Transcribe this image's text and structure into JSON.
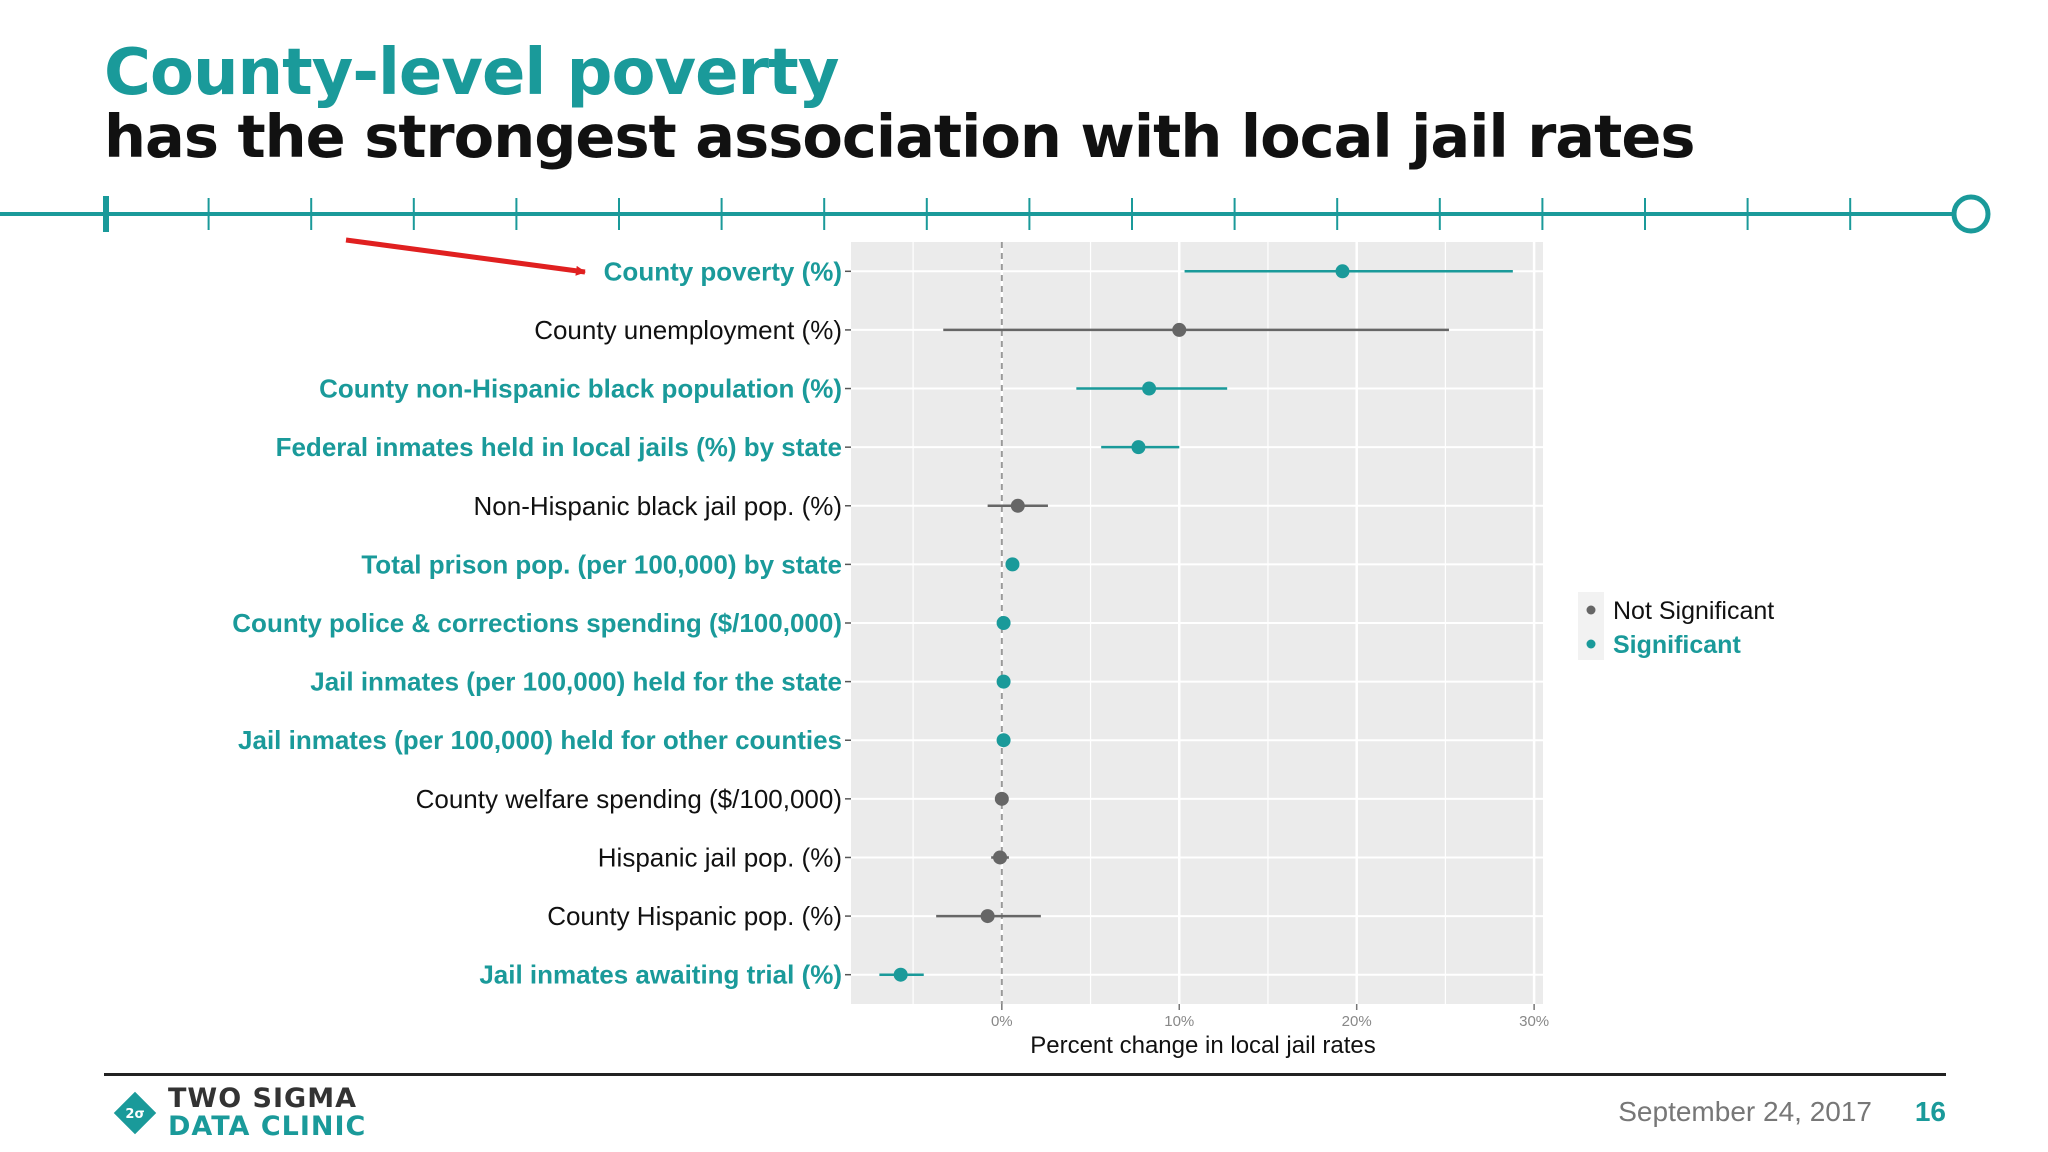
{
  "slide": {
    "title_line1": "County-level poverty",
    "title_line2": "has the strongest association with local jail rates",
    "date": "September 24, 2017",
    "page_number": "16",
    "logo": {
      "line1": "TWO SIGMA",
      "line2": "DATA CLINIC",
      "mark": "2σ"
    }
  },
  "colors": {
    "teal": "#1a9a9a",
    "grey": "#666666",
    "dark": "#111111",
    "panel": "#ebebeb",
    "arrow": "#e02020"
  },
  "chart_data": {
    "type": "scatter",
    "subtype": "coefficient-plot-with-confidence-intervals",
    "xlabel": "Percent change in local jail rates",
    "xlim": [
      -8.5,
      30.5
    ],
    "xticks": [
      0,
      10,
      20,
      30
    ],
    "xtick_labels": [
      "0%",
      "10%",
      "20%",
      "30%"
    ],
    "reference_line_x": 0,
    "grid": true,
    "legend": {
      "placement": "right",
      "entries": [
        {
          "label": "Not Significant",
          "color": "#666666"
        },
        {
          "label": "Significant",
          "color": "#1a9a9a"
        }
      ]
    },
    "annotation": {
      "type": "arrow",
      "points_to": "County poverty (%)"
    },
    "rows": [
      {
        "label": "County poverty (%)",
        "estimate": 19.2,
        "low": 10.3,
        "high": 28.8,
        "significant": true
      },
      {
        "label": "County unemployment (%)",
        "estimate": 10.0,
        "low": -3.3,
        "high": 25.2,
        "significant": false
      },
      {
        "label": "County non-Hispanic black population (%)",
        "estimate": 8.3,
        "low": 4.2,
        "high": 12.7,
        "significant": true
      },
      {
        "label": "Federal inmates held in local jails (%) by state",
        "estimate": 7.7,
        "low": 5.6,
        "high": 10.0,
        "significant": true
      },
      {
        "label": "Non-Hispanic black jail pop. (%)",
        "estimate": 0.9,
        "low": -0.8,
        "high": 2.6,
        "significant": false
      },
      {
        "label": "Total prison pop. (per 100,000) by state",
        "estimate": 0.6,
        "low": 0.4,
        "high": 0.8,
        "significant": true
      },
      {
        "label": "County police & corrections spending ($/100,000)",
        "estimate": 0.1,
        "low": -0.1,
        "high": 0.3,
        "significant": true
      },
      {
        "label": "Jail inmates (per 100,000) held for the state",
        "estimate": 0.1,
        "low": -0.1,
        "high": 0.3,
        "significant": true
      },
      {
        "label": "Jail inmates (per 100,000) held for other counties",
        "estimate": 0.1,
        "low": -0.1,
        "high": 0.3,
        "significant": true
      },
      {
        "label": "County welfare spending ($/100,000)",
        "estimate": 0.0,
        "low": -0.2,
        "high": 0.2,
        "significant": false
      },
      {
        "label": "Hispanic jail pop. (%)",
        "estimate": -0.1,
        "low": -0.6,
        "high": 0.4,
        "significant": false
      },
      {
        "label": "County Hispanic pop. (%)",
        "estimate": -0.8,
        "low": -3.7,
        "high": 2.2,
        "significant": false
      },
      {
        "label": "Jail inmates awaiting trial (%)",
        "estimate": -5.7,
        "low": -6.9,
        "high": -4.4,
        "significant": true
      }
    ]
  }
}
